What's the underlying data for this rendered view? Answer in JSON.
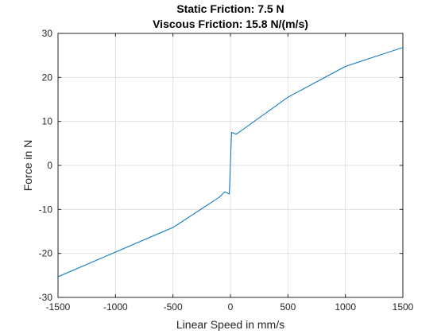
{
  "chart_data": {
    "type": "line",
    "title": "Static Friction: 7.5 N",
    "subtitle": "Viscous Friction: 15.8 N/(m/s)",
    "xlabel": "Linear Speed in mm/s",
    "ylabel": "Force in N",
    "xlim": [
      -1500,
      1500
    ],
    "ylim": [
      -30,
      30
    ],
    "xticks": [
      -1500,
      -1000,
      -500,
      0,
      500,
      1000,
      1500
    ],
    "yticks": [
      -30,
      -20,
      -10,
      0,
      10,
      20,
      30
    ],
    "grid": true,
    "series": [
      {
        "color": "#0072bd",
        "x": [
          -1500,
          -1000,
          -500,
          -100,
          -50,
          -10,
          10,
          50,
          100,
          500,
          1000,
          1500
        ],
        "y": [
          -25.3,
          -19.7,
          -14.1,
          -7.3,
          -6.0,
          -6.5,
          7.5,
          7.1,
          8.0,
          15.5,
          22.5,
          26.8
        ]
      }
    ]
  }
}
